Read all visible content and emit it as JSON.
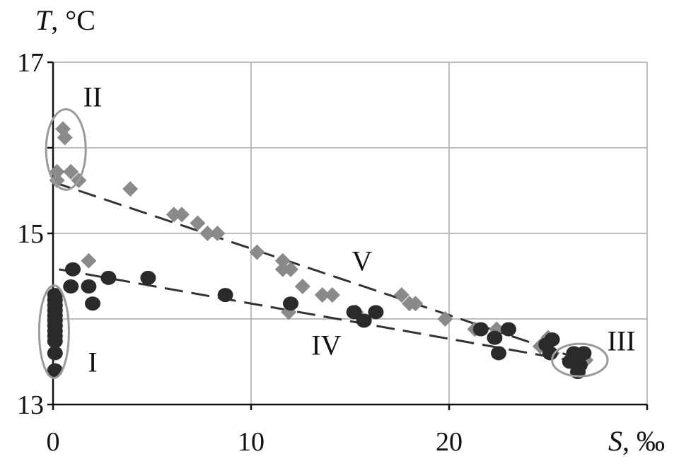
{
  "chart_data": {
    "type": "scatter",
    "title": "",
    "xlabel": {
      "var": "S",
      "unit": ", ‰"
    },
    "ylabel": {
      "var": "T",
      "unit": ", °C"
    },
    "xlim": [
      0,
      30
    ],
    "ylim": [
      13,
      17
    ],
    "x_ticks": [
      0,
      10,
      20
    ],
    "y_ticks": [
      13,
      15,
      17
    ],
    "grid": true,
    "series": [
      {
        "marker": "diamond",
        "color": "#8a8a8a",
        "points": [
          [
            0.5,
            16.22
          ],
          [
            0.6,
            16.12
          ],
          [
            0.2,
            15.72
          ],
          [
            0.9,
            15.72
          ],
          [
            1.3,
            15.62
          ],
          [
            0.2,
            15.62
          ],
          [
            3.9,
            15.52
          ],
          [
            6.1,
            15.22
          ],
          [
            6.5,
            15.22
          ],
          [
            7.3,
            15.12
          ],
          [
            7.8,
            15.0
          ],
          [
            8.3,
            15.0
          ],
          [
            10.3,
            14.78
          ],
          [
            11.6,
            14.68
          ],
          [
            1.8,
            14.68
          ],
          [
            11.6,
            14.58
          ],
          [
            12.0,
            14.58
          ],
          [
            12.6,
            14.38
          ],
          [
            13.6,
            14.28
          ],
          [
            14.1,
            14.28
          ],
          [
            17.6,
            14.28
          ],
          [
            18.0,
            14.18
          ],
          [
            18.3,
            14.18
          ],
          [
            11.9,
            14.08
          ],
          [
            15.3,
            14.08
          ],
          [
            19.8,
            14.0
          ],
          [
            21.3,
            13.88
          ],
          [
            22.4,
            13.88
          ],
          [
            25.0,
            13.78
          ],
          [
            24.6,
            13.68
          ],
          [
            25.2,
            13.6
          ],
          [
            26.2,
            13.52
          ],
          [
            26.9,
            13.52
          ]
        ]
      },
      {
        "marker": "circle",
        "color": "#2a2a2a",
        "points": [
          [
            0.1,
            14.28
          ],
          [
            0.1,
            14.22
          ],
          [
            0.1,
            14.16
          ],
          [
            0.1,
            14.1
          ],
          [
            0.1,
            14.04
          ],
          [
            0.1,
            13.98
          ],
          [
            0.1,
            13.92
          ],
          [
            0.1,
            13.86
          ],
          [
            0.1,
            13.8
          ],
          [
            0.1,
            13.74
          ],
          [
            0.1,
            13.6
          ],
          [
            0.1,
            13.4
          ],
          [
            1.0,
            14.58
          ],
          [
            0.9,
            14.38
          ],
          [
            1.8,
            14.38
          ],
          [
            2.0,
            14.18
          ],
          [
            2.8,
            14.48
          ],
          [
            4.8,
            14.48
          ],
          [
            8.7,
            14.28
          ],
          [
            12.0,
            14.18
          ],
          [
            15.2,
            14.08
          ],
          [
            16.3,
            14.08
          ],
          [
            15.7,
            13.98
          ],
          [
            21.6,
            13.88
          ],
          [
            23.0,
            13.88
          ],
          [
            22.3,
            13.78
          ],
          [
            22.5,
            13.6
          ],
          [
            24.9,
            13.7
          ],
          [
            25.1,
            13.6
          ],
          [
            25.2,
            13.76
          ],
          [
            26.3,
            13.6
          ],
          [
            26.8,
            13.6
          ],
          [
            26.1,
            13.5
          ],
          [
            26.6,
            13.46
          ],
          [
            26.5,
            13.38
          ]
        ]
      }
    ],
    "trendlines": [
      {
        "from": [
          0,
          15.6
        ],
        "to": [
          27.0,
          13.5
        ]
      },
      {
        "from": [
          0.3,
          14.58
        ],
        "to": [
          26.5,
          13.5
        ]
      }
    ],
    "annotations": [
      {
        "text": "I",
        "x": 2.0,
        "y": 13.5
      },
      {
        "text": "II",
        "x": 2.0,
        "y": 16.6
      },
      {
        "text": "III",
        "x": 28.7,
        "y": 13.75
      },
      {
        "text": "IV",
        "x": 13.8,
        "y": 13.7
      },
      {
        "text": "V",
        "x": 15.6,
        "y": 14.68
      }
    ],
    "highlight_regions": [
      {
        "cx": 0.05,
        "cy": 13.85,
        "rx": 0.75,
        "ry": 0.54
      },
      {
        "cx": 0.65,
        "cy": 15.98,
        "rx": 1.0,
        "ry": 0.47
      },
      {
        "cx": 26.6,
        "cy": 13.52,
        "rx": 1.4,
        "ry": 0.19
      }
    ]
  }
}
